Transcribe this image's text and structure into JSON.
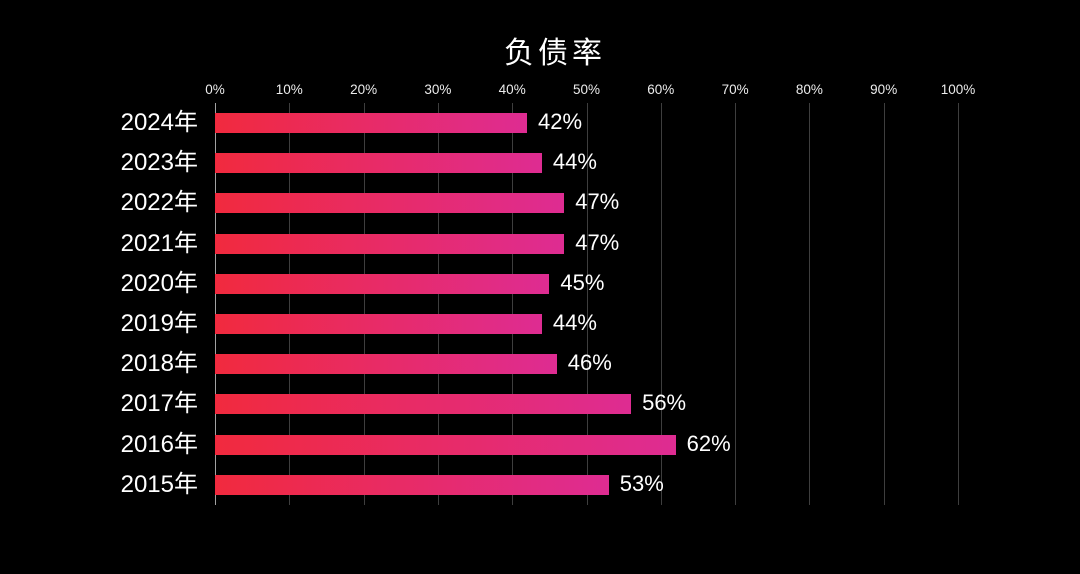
{
  "title": "负债率",
  "chart_data": {
    "type": "bar",
    "orientation": "horizontal",
    "title": "负债率",
    "categories": [
      "2024年",
      "2023年",
      "2022年",
      "2021年",
      "2020年",
      "2019年",
      "2018年",
      "2017年",
      "2016年",
      "2015年"
    ],
    "values": [
      42,
      44,
      47,
      47,
      45,
      44,
      46,
      56,
      62,
      53
    ],
    "value_labels": [
      "42%",
      "44%",
      "47%",
      "47%",
      "45%",
      "44%",
      "46%",
      "56%",
      "62%",
      "53%"
    ],
    "xlabel": "",
    "ylabel": "",
    "xlim": [
      0,
      100
    ],
    "x_tick_labels": [
      "0%",
      "10%",
      "20%",
      "30%",
      "40%",
      "50%",
      "60%",
      "70%",
      "80%",
      "90%",
      "100%"
    ],
    "grid": true,
    "tick_position": "top",
    "legend": "none",
    "colors": {
      "background": "#000000",
      "title_text": "#ffffff",
      "axis_text": "#ececec",
      "label_text": "#ffffff",
      "gridline": "#3e3e3e",
      "zero_axis_line": "#a2a2a2",
      "bar_gradient_start": "#f12a3e",
      "bar_gradient_end": "#de2c92"
    }
  }
}
